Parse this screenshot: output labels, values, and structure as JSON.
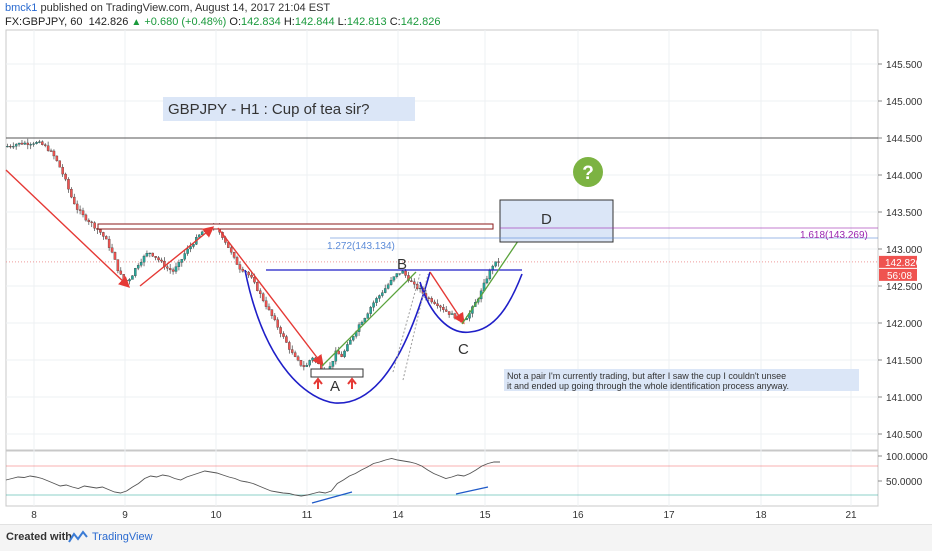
{
  "header": {
    "user": "bmck1",
    "published": " published on TradingView.com, August 14, 2017 21:04 EST",
    "symbol": "FX:GBPJPY, 60",
    "last": "142.826",
    "change": "+0.680 (+0.48%)",
    "o_label": "O:",
    "o": "142.834",
    "h_label": "H:",
    "h": "142.844",
    "l_label": "L:",
    "l": "142.813",
    "c_label": "C:",
    "c": "142.826"
  },
  "annotations": {
    "title": "GBPJPY - H1 :  Cup of tea sir?",
    "label_a": "A",
    "label_b": "B",
    "label_c": "C",
    "label_d": "D",
    "fib_1272": "1.272(143.134)",
    "fib_1618": "1.618(143.269)",
    "note_line1": "Not a pair I'm currently trading, but after I saw the cup I couldn't unsee",
    "note_line2": "it and ended up going through the whole identification process anyway.",
    "question_glyph": "?"
  },
  "colors": {
    "up": "#26a69a",
    "down": "#ef5350",
    "cup": "#1f1fc8",
    "arrow": "#e53935",
    "green_leg": "#5aa33c",
    "fib_1272": "#5b8bd8",
    "fib_1618": "#9c27b0",
    "osc": "#555555",
    "note_bg": "#dbe6f7",
    "question_bg": "#7cb342"
  },
  "chart_data": [
    {
      "type": "candlestick",
      "price_axis": {
        "ticks": [
          "145.500",
          "145.000",
          "144.500",
          "144.000",
          "143.500",
          "143.000",
          "142.500",
          "142.000",
          "141.500",
          "141.000",
          "140.500"
        ],
        "last_price_label": "142.826",
        "countdown_label": "56:08"
      },
      "time_axis": {
        "ticks": [
          "8",
          "9",
          "10",
          "11",
          "14",
          "15",
          "16",
          "17",
          "18",
          "21"
        ]
      },
      "levels": {
        "resistance": 144.5,
        "fib_1272": 143.134,
        "fib_1618": 143.269,
        "last": 142.826
      },
      "close_path": [
        144.38,
        144.4,
        144.42,
        144.43,
        144.43,
        144.44,
        144.42,
        144.37,
        144.28,
        144.14,
        143.95,
        143.72,
        143.55,
        143.45,
        143.38,
        143.3,
        143.22,
        143.1,
        142.92,
        142.68,
        142.55,
        142.62,
        142.78,
        142.88,
        142.96,
        142.9,
        142.82,
        142.74,
        142.7,
        142.8,
        142.95,
        143.05,
        143.15,
        143.25,
        143.28,
        143.3,
        143.2,
        143.05,
        142.88,
        142.75,
        142.7,
        142.6,
        142.45,
        142.3,
        142.15,
        142.0,
        141.85,
        141.7,
        141.55,
        141.45,
        141.4,
        141.55,
        141.45,
        141.35,
        141.4,
        141.6,
        141.55,
        141.7,
        141.85,
        142.0,
        142.1,
        142.25,
        142.35,
        142.45,
        142.55,
        142.65,
        142.7,
        142.6,
        142.5,
        142.45,
        142.35,
        142.3,
        142.25,
        142.18,
        142.12,
        142.08,
        142.05,
        142.1,
        142.25,
        142.4,
        142.6,
        142.78,
        142.83
      ]
    },
    {
      "type": "line",
      "name": "oscillator",
      "y_axis": {
        "ticks": [
          "100.0000",
          "50.0000"
        ]
      },
      "values": [
        52,
        55,
        58,
        57,
        60,
        58,
        55,
        50,
        45,
        40,
        42,
        38,
        35,
        40,
        38,
        36,
        38,
        33,
        28,
        26,
        30,
        38,
        45,
        55,
        60,
        58,
        62,
        60,
        55,
        52,
        58,
        62,
        66,
        70,
        68,
        66,
        62,
        58,
        55,
        50,
        48,
        45,
        40,
        35,
        30,
        28,
        26,
        25,
        22,
        20,
        22,
        25,
        28,
        26,
        30,
        45,
        52,
        60,
        65,
        72,
        78,
        85,
        88,
        92,
        95,
        92,
        90,
        88,
        85,
        80,
        72,
        65,
        60,
        55,
        58,
        62,
        60,
        65,
        72,
        80,
        85,
        88,
        88
      ]
    }
  ]
}
